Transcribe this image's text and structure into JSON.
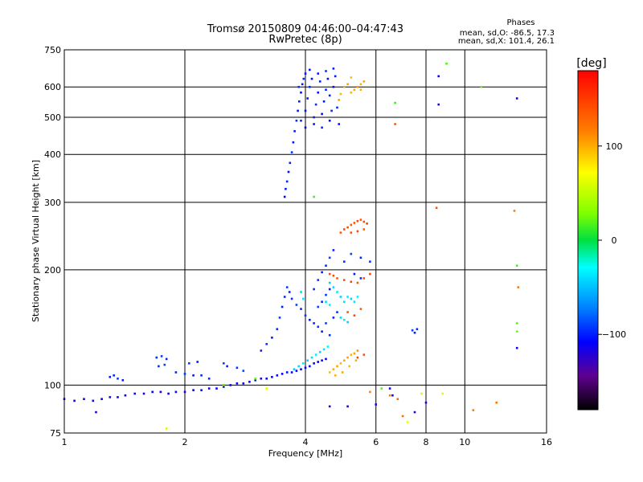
{
  "header": {
    "title_line1": "Tromsø 20150809 04:46:00–04:47:43",
    "title_line2": "RwPretec (8p)",
    "phase_title": "Phases",
    "phase_o": "mean, sd,O: -86.5, 17.3",
    "phase_x": "mean, sd,X: 101.4, 26.1"
  },
  "chart_data": {
    "type": "scatter",
    "xlabel": "Frequency [MHz]",
    "ylabel": "Stationary phase Virtual Height [km]",
    "x_scale": "log",
    "y_scale": "log",
    "xlim": [
      1,
      16
    ],
    "ylim": [
      75,
      750
    ],
    "x_ticks": [
      1,
      2,
      4,
      6,
      8,
      10,
      16
    ],
    "x_tick_labels": [
      "1",
      "2",
      "4",
      "6",
      "8",
      "10",
      "16"
    ],
    "y_ticks": [
      75,
      100,
      200,
      300,
      400,
      500,
      600,
      750
    ],
    "y_tick_labels": [
      "75",
      "100",
      "200",
      "300",
      "400",
      "500",
      "600",
      "750"
    ],
    "grid": true,
    "colorbar": {
      "label": "[deg]",
      "range": [
        -180,
        180
      ],
      "ticks": [
        100,
        0,
        -100
      ],
      "tick_labels": [
        "100",
        "0",
        "−100"
      ]
    },
    "series": [
      {
        "points": [
          [
            1.0,
            92
          ],
          [
            1.06,
            91
          ],
          [
            1.12,
            92
          ],
          [
            1.18,
            91
          ],
          [
            1.24,
            92
          ],
          [
            1.3,
            93
          ],
          [
            1.36,
            93
          ],
          [
            1.42,
            94
          ],
          [
            1.5,
            95
          ],
          [
            1.58,
            95
          ],
          [
            1.66,
            96
          ],
          [
            1.74,
            96
          ],
          [
            1.82,
            95
          ],
          [
            1.9,
            96
          ],
          [
            2.0,
            96
          ],
          [
            2.1,
            97
          ],
          [
            2.2,
            97
          ],
          [
            2.3,
            98
          ],
          [
            2.4,
            98
          ],
          [
            2.5,
            99
          ],
          [
            2.6,
            100
          ],
          [
            2.7,
            101
          ],
          [
            2.8,
            101
          ],
          [
            2.9,
            102
          ],
          [
            3.0,
            103
          ],
          [
            3.1,
            104
          ],
          [
            3.2,
            104
          ],
          [
            3.3,
            105
          ],
          [
            3.4,
            106
          ],
          [
            3.5,
            107
          ],
          [
            3.6,
            108
          ],
          [
            3.7,
            108
          ],
          [
            3.8,
            109
          ],
          [
            3.9,
            110
          ],
          [
            4.0,
            111
          ],
          [
            4.1,
            112
          ],
          [
            4.2,
            114
          ],
          [
            4.3,
            115
          ],
          [
            4.4,
            116
          ],
          [
            4.5,
            117
          ]
        ],
        "phase": -110
      },
      {
        "points": [
          [
            1.3,
            105
          ],
          [
            1.33,
            106
          ],
          [
            1.36,
            104
          ],
          [
            1.4,
            103
          ],
          [
            1.7,
            118
          ],
          [
            1.75,
            119
          ],
          [
            1.8,
            117
          ],
          [
            1.72,
            112
          ],
          [
            1.78,
            113
          ],
          [
            1.9,
            108
          ],
          [
            2.0,
            107
          ],
          [
            2.1,
            106
          ],
          [
            2.2,
            106
          ],
          [
            2.05,
            114
          ],
          [
            2.15,
            115
          ],
          [
            2.3,
            104
          ],
          [
            2.5,
            114
          ],
          [
            2.55,
            112
          ],
          [
            2.7,
            111
          ],
          [
            2.8,
            109
          ],
          [
            3.1,
            123
          ],
          [
            3.2,
            128
          ],
          [
            3.3,
            133
          ],
          [
            3.4,
            140
          ],
          [
            3.45,
            150
          ],
          [
            3.5,
            160
          ],
          [
            3.55,
            170
          ],
          [
            3.6,
            180
          ],
          [
            3.65,
            175
          ],
          [
            3.7,
            168
          ],
          [
            3.8,
            162
          ],
          [
            3.9,
            158
          ],
          [
            4.0,
            152
          ],
          [
            4.1,
            148
          ],
          [
            4.2,
            145
          ],
          [
            4.3,
            142
          ],
          [
            4.4,
            138
          ],
          [
            4.6,
            135
          ],
          [
            4.5,
            145
          ],
          [
            4.7,
            150
          ],
          [
            4.8,
            155
          ],
          [
            4.3,
            160
          ],
          [
            4.4,
            165
          ],
          [
            4.5,
            172
          ],
          [
            4.6,
            178
          ],
          [
            4.2,
            178
          ],
          [
            4.3,
            188
          ],
          [
            4.4,
            197
          ],
          [
            4.5,
            205
          ],
          [
            4.6,
            215
          ],
          [
            4.7,
            225
          ],
          [
            5.0,
            210
          ],
          [
            5.2,
            220
          ],
          [
            5.5,
            215
          ],
          [
            5.8,
            210
          ],
          [
            5.3,
            195
          ],
          [
            5.5,
            190
          ],
          [
            7.4,
            139
          ],
          [
            7.5,
            137
          ],
          [
            7.6,
            140
          ]
        ],
        "phase": -95
      },
      {
        "points": [
          [
            3.55,
            310
          ],
          [
            3.57,
            325
          ],
          [
            3.6,
            340
          ],
          [
            3.63,
            360
          ],
          [
            3.66,
            380
          ],
          [
            3.7,
            405
          ],
          [
            3.73,
            430
          ],
          [
            3.76,
            460
          ],
          [
            3.8,
            490
          ],
          [
            3.83,
            520
          ],
          [
            3.86,
            550
          ],
          [
            3.9,
            580
          ],
          [
            3.93,
            610
          ],
          [
            3.96,
            630
          ],
          [
            4.0,
            520
          ],
          [
            4.05,
            560
          ],
          [
            4.1,
            600
          ],
          [
            4.15,
            630
          ],
          [
            4.2,
            500
          ],
          [
            4.25,
            540
          ],
          [
            4.3,
            580
          ],
          [
            4.35,
            620
          ],
          [
            4.4,
            510
          ],
          [
            4.45,
            550
          ],
          [
            4.5,
            590
          ],
          [
            4.55,
            630
          ],
          [
            4.6,
            570
          ],
          [
            4.65,
            520
          ],
          [
            4.7,
            600
          ],
          [
            4.75,
            640
          ],
          [
            4.8,
            530
          ],
          [
            4.85,
            480
          ],
          [
            3.9,
            490
          ],
          [
            4.0,
            470
          ],
          [
            4.2,
            480
          ],
          [
            4.4,
            470
          ],
          [
            4.6,
            490
          ],
          [
            4.3,
            650
          ],
          [
            4.5,
            660
          ],
          [
            4.1,
            665
          ],
          [
            4.7,
            670
          ],
          [
            3.85,
            600
          ],
          [
            4.0,
            650
          ]
        ],
        "phase": -100
      },
      {
        "points": [
          [
            3.75,
            110
          ],
          [
            3.85,
            112
          ],
          [
            3.95,
            114
          ],
          [
            4.05,
            116
          ],
          [
            4.15,
            118
          ],
          [
            4.25,
            120
          ],
          [
            4.35,
            122
          ],
          [
            4.45,
            124
          ],
          [
            4.55,
            126
          ],
          [
            3.9,
            175
          ],
          [
            3.95,
            168
          ],
          [
            4.6,
            185
          ],
          [
            4.7,
            180
          ],
          [
            4.8,
            175
          ],
          [
            4.9,
            170
          ],
          [
            5.0,
            165
          ],
          [
            5.1,
            170
          ],
          [
            5.2,
            168
          ],
          [
            5.3,
            165
          ],
          [
            5.4,
            170
          ],
          [
            4.9,
            150
          ],
          [
            5.0,
            148
          ],
          [
            5.1,
            146
          ],
          [
            4.5,
            165
          ],
          [
            4.6,
            162
          ]
        ],
        "phase": -40
      },
      {
        "points": [
          [
            4.6,
            108
          ],
          [
            4.7,
            110
          ],
          [
            4.8,
            112
          ],
          [
            4.9,
            114
          ],
          [
            5.0,
            116
          ],
          [
            5.1,
            118
          ],
          [
            5.2,
            120
          ],
          [
            5.3,
            121
          ],
          [
            5.4,
            123
          ],
          [
            4.75,
            106
          ],
          [
            4.95,
            108
          ],
          [
            5.15,
            112
          ],
          [
            5.35,
            116
          ],
          [
            4.85,
            555
          ],
          [
            4.9,
            575
          ],
          [
            5.0,
            600
          ],
          [
            5.1,
            610
          ],
          [
            5.2,
            580
          ],
          [
            5.3,
            590
          ],
          [
            5.4,
            600
          ],
          [
            5.5,
            610
          ],
          [
            5.6,
            620
          ],
          [
            5.2,
            635
          ],
          [
            5.5,
            590
          ]
        ],
        "phase": 100
      },
      {
        "points": [
          [
            4.9,
            250
          ],
          [
            5.0,
            255
          ],
          [
            5.1,
            258
          ],
          [
            5.2,
            262
          ],
          [
            5.3,
            265
          ],
          [
            5.4,
            268
          ],
          [
            5.5,
            270
          ],
          [
            5.6,
            267
          ],
          [
            5.7,
            264
          ],
          [
            5.2,
            250
          ],
          [
            5.4,
            252
          ],
          [
            5.6,
            255
          ],
          [
            4.6,
            195
          ],
          [
            4.7,
            193
          ],
          [
            4.8,
            190
          ],
          [
            5.0,
            188
          ],
          [
            5.2,
            186
          ],
          [
            5.4,
            185
          ],
          [
            5.6,
            190
          ],
          [
            5.8,
            195
          ],
          [
            5.1,
            155
          ],
          [
            5.3,
            152
          ],
          [
            5.5,
            158
          ],
          [
            5.6,
            120
          ],
          [
            5.4,
            118
          ],
          [
            6.7,
            480
          ],
          [
            8.5,
            290
          ]
        ],
        "phase": 140
      },
      {
        "points": [
          [
            6.7,
            545
          ],
          [
            9.0,
            690
          ],
          [
            11.0,
            600
          ],
          [
            13.5,
            205
          ],
          [
            13.5,
            145
          ],
          [
            13.5,
            138
          ],
          [
            4.2,
            310
          ],
          [
            6.2,
            98
          ],
          [
            3.0,
            104
          ],
          [
            2.5,
            100
          ]
        ],
        "phase": 20
      },
      {
        "points": [
          [
            1.2,
            85
          ],
          [
            6.5,
            98
          ],
          [
            6.6,
            94
          ],
          [
            7.5,
            85
          ],
          [
            8.0,
            90
          ],
          [
            8.6,
            640
          ],
          [
            8.6,
            540
          ],
          [
            13.5,
            560
          ],
          [
            13.5,
            125
          ],
          [
            4.6,
            88
          ],
          [
            5.1,
            88
          ],
          [
            6.0,
            89
          ]
        ],
        "phase": -120
      },
      {
        "points": [
          [
            5.8,
            96
          ],
          [
            6.5,
            94
          ],
          [
            6.8,
            92
          ],
          [
            13.3,
            285
          ],
          [
            13.6,
            180
          ],
          [
            7.0,
            83
          ],
          [
            10.5,
            86
          ],
          [
            12.0,
            90
          ]
        ],
        "phase": 120
      },
      {
        "points": [
          [
            1.8,
            77
          ],
          [
            3.2,
            98
          ],
          [
            7.2,
            80
          ],
          [
            7.8,
            95
          ],
          [
            8.8,
            95
          ]
        ],
        "phase": 60
      }
    ]
  }
}
